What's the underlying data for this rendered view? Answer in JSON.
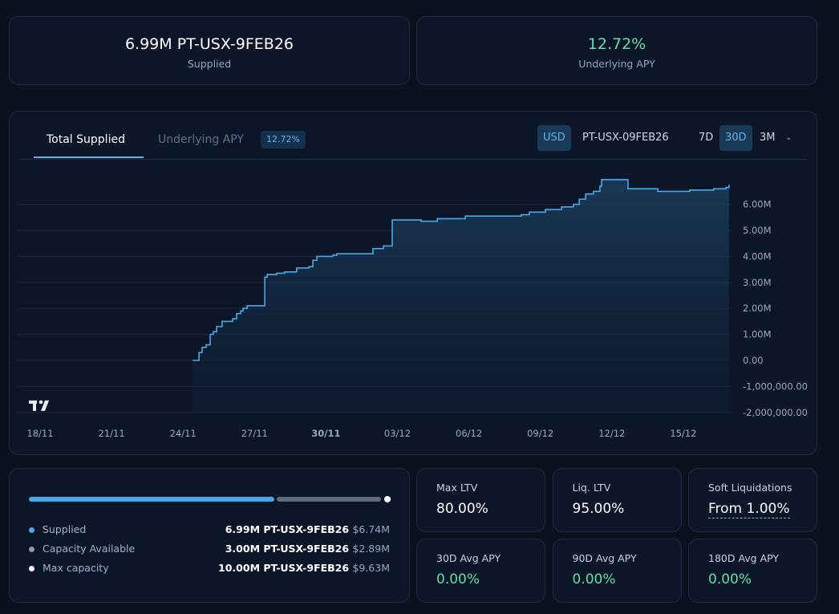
{
  "summary": {
    "supplied_value": "6.99M PT-USX-9FEB26",
    "supplied_label": "Supplied",
    "apy_value": "12.72%",
    "apy_label": "Underlying APY"
  },
  "chart_header": {
    "tabs": [
      {
        "label": "Total Supplied",
        "active": true
      },
      {
        "label": "Underlying APY",
        "active": false
      }
    ],
    "apy_badge": "12.72%",
    "currency_options": [
      "USD",
      "PT-USX-09FEB26"
    ],
    "selected_currency": "USD",
    "ranges": [
      "7D",
      "30D",
      "3M"
    ],
    "selected_range": "30D"
  },
  "chart_data": {
    "type": "area",
    "title": "Total Supplied",
    "x_unit": "days since 18/11",
    "x_ticks": [
      "18/11",
      "21/11",
      "24/11",
      "27/11",
      "30/11",
      "03/12",
      "06/12",
      "09/12",
      "12/12",
      "15/12"
    ],
    "x_bold_tick": "30/11",
    "y_ticks": [
      "6.00M",
      "5.00M",
      "4.00M",
      "3.00M",
      "2.00M",
      "1.00M",
      "0.00",
      "-1,000,000.00",
      "-2,000,000.00"
    ],
    "y_tick_values": [
      6,
      5,
      4,
      3,
      2,
      1,
      0,
      -1,
      -2
    ],
    "ylim": [
      -2,
      6.9
    ],
    "y_unit": "M",
    "xlim": [
      0,
      30
    ],
    "series": [
      {
        "name": "Total Supplied",
        "color": "#4aa8e6",
        "x": [
          6.4,
          6.57,
          6.67,
          6.8,
          6.97,
          7.14,
          7.27,
          7.41,
          7.64,
          8.08,
          8.25,
          8.42,
          8.52,
          8.69,
          9.33,
          9.43,
          9.53,
          9.93,
          10.27,
          10.77,
          11.28,
          11.45,
          11.62,
          12.29,
          12.46,
          13.8,
          13.97,
          14.41,
          14.71,
          14.78,
          15.49,
          15.99,
          16.67,
          17.85,
          20.2,
          20.54,
          21.21,
          21.89,
          22.39,
          22.63,
          22.9,
          23.23,
          23.5,
          23.57,
          24.58,
          24.68,
          25.76,
          25.93,
          27.27,
          28.28,
          28.79,
          28.92
        ],
        "y": [
          0,
          0,
          0.3,
          0.5,
          0.6,
          1.0,
          1.1,
          1.3,
          1.5,
          1.6,
          1.8,
          1.9,
          2.0,
          2.1,
          2.1,
          3.2,
          3.3,
          3.35,
          3.4,
          3.55,
          3.6,
          3.85,
          4.0,
          4.05,
          4.1,
          4.1,
          4.3,
          4.4,
          4.4,
          5.4,
          5.4,
          5.35,
          5.45,
          5.55,
          5.6,
          5.7,
          5.8,
          5.9,
          6.0,
          6.2,
          6.4,
          6.5,
          6.7,
          6.95,
          6.95,
          6.6,
          6.6,
          6.5,
          6.55,
          6.6,
          6.65,
          6.75
        ]
      }
    ]
  },
  "capacity": {
    "supplied_fraction": 0.699,
    "items": [
      {
        "label": "Supplied",
        "amount": "6.99M PT-USX-9FEB26",
        "usd": "$6.74M",
        "color": "#4aa8e6"
      },
      {
        "label": "Capacity Available",
        "amount": "3.00M PT-USX-9FEB26",
        "usd": "$2.89M",
        "color": "#8e99a8"
      },
      {
        "label": "Max capacity",
        "amount": "10.00M PT-USX-9FEB26",
        "usd": "$9.63M",
        "color": "#ffffff"
      }
    ]
  },
  "stats": [
    {
      "label": "Max LTV",
      "value": "80.00%"
    },
    {
      "label": "Liq. LTV",
      "value": "95.00%"
    },
    {
      "label": "Soft Liquidations",
      "value": "From 1.00%"
    },
    {
      "label": "30D Avg APY",
      "value": "0.00%"
    },
    {
      "label": "90D Avg APY",
      "value": "0.00%"
    },
    {
      "label": "180D Avg APY",
      "value": "0.00%"
    }
  ],
  "colors": {
    "accent": "#4aa8e6",
    "positive": "#5fe0a6"
  }
}
